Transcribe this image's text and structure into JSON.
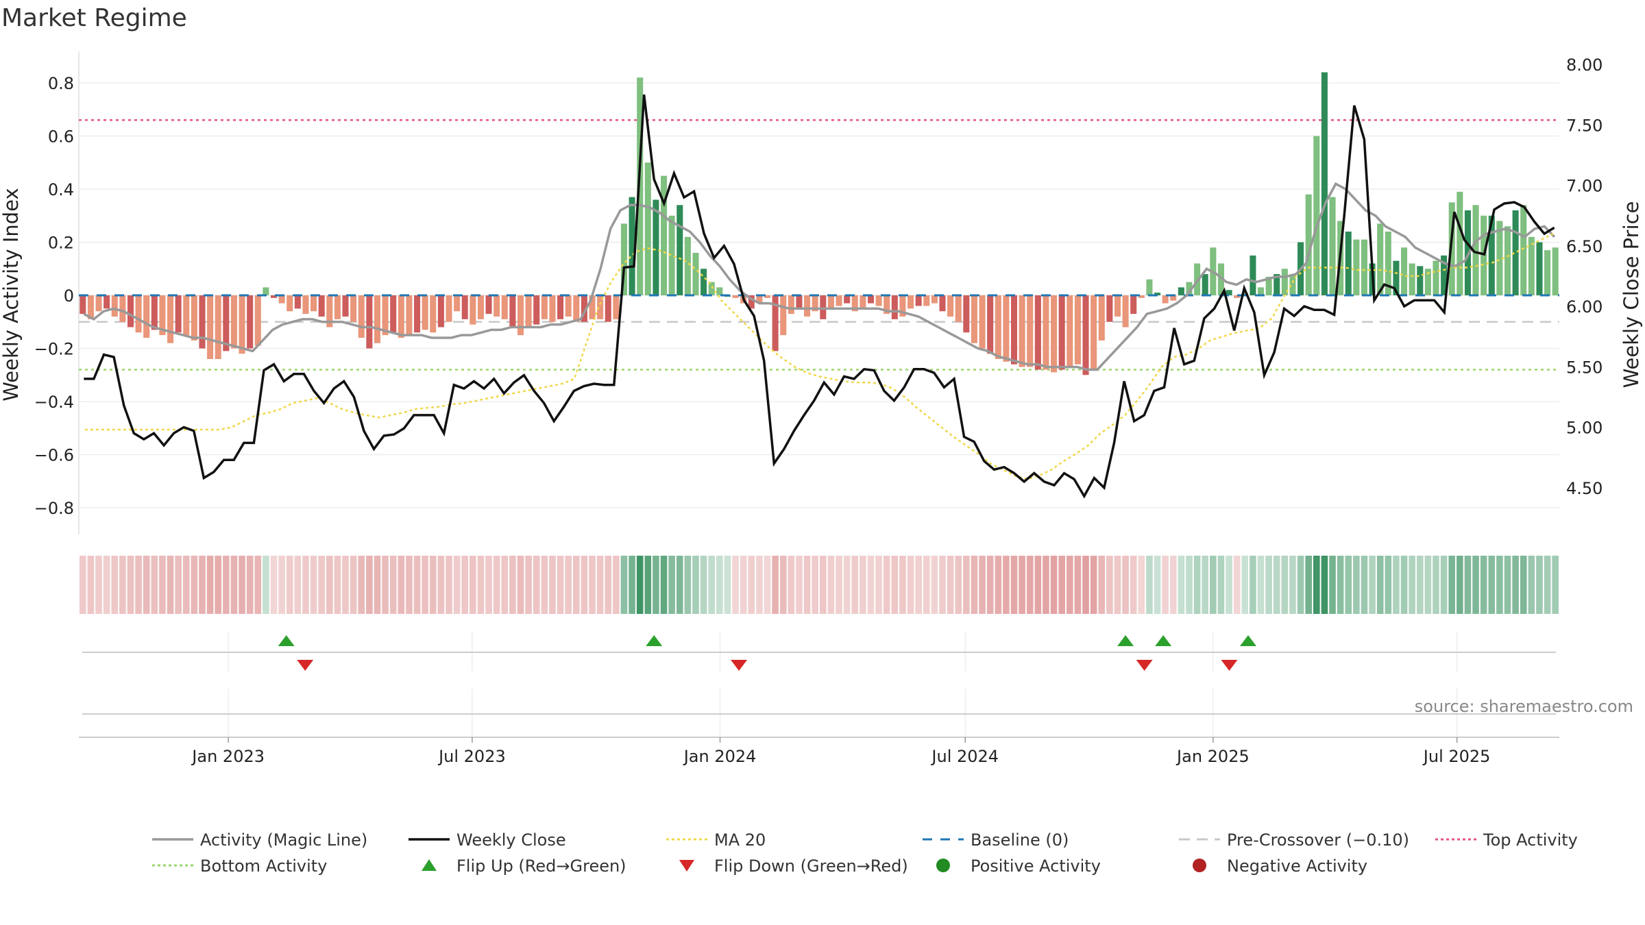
{
  "page": {
    "title": "Market Regime",
    "source": "source: sharemaestro.com"
  },
  "colors": {
    "dark_green": "#2e8b57",
    "light_green": "#7fbf7f",
    "dark_red": "#cd5c5c",
    "light_red": "#e9967a",
    "magic_line": "#999999",
    "weekly_close": "#111111",
    "ma20": "#f0d84a",
    "baseline": "#1f77b4",
    "pre_crossover": "#c8c8c8",
    "top_activity": "#e75480",
    "bottom_activity": "#9ad66a",
    "flip_up": "#2ca02c",
    "flip_down": "#d62728",
    "positive": "#228b22",
    "negative": "#b22222"
  },
  "chart_data": {
    "type": "bar",
    "title": "Market Regime",
    "x_axis": {
      "start": "2022-09-12",
      "end": "2025-09-15",
      "ticks": [
        "Jan 2023",
        "Jul 2023",
        "Jan 2024",
        "Jul 2024",
        "Jan 2025",
        "Jul 2025"
      ]
    },
    "y_left": {
      "label": "Weekly Activity Index",
      "range": [
        -0.9,
        0.92
      ],
      "ticks": [
        "0.8",
        "0.6",
        "0.4",
        "0.2",
        "0",
        "−0.2",
        "−0.4",
        "−0.6",
        "−0.8"
      ]
    },
    "y_right": {
      "label": "Weekly Close Price",
      "range": [
        4.0,
        8.0
      ],
      "ticks": [
        "8.00",
        "7.50",
        "7.00",
        "6.50",
        "6.00",
        "5.50",
        "5.00",
        "4.50"
      ]
    },
    "thresholds": {
      "top_activity": 0.66,
      "bottom_activity": -0.28,
      "pre_crossover": -0.1,
      "baseline": 0
    },
    "activity_index": [
      -0.07,
      -0.09,
      -0.06,
      -0.05,
      -0.08,
      -0.1,
      -0.12,
      -0.14,
      -0.16,
      -0.13,
      -0.15,
      -0.18,
      -0.14,
      -0.15,
      -0.17,
      -0.2,
      -0.24,
      -0.24,
      -0.21,
      -0.2,
      -0.22,
      -0.2,
      -0.19,
      0.03,
      -0.01,
      -0.03,
      -0.06,
      -0.05,
      -0.07,
      -0.06,
      -0.08,
      -0.12,
      -0.09,
      -0.08,
      -0.1,
      -0.16,
      -0.2,
      -0.18,
      -0.15,
      -0.14,
      -0.16,
      -0.15,
      -0.14,
      -0.13,
      -0.14,
      -0.12,
      -0.1,
      -0.06,
      -0.09,
      -0.11,
      -0.09,
      -0.07,
      -0.08,
      -0.09,
      -0.12,
      -0.15,
      -0.12,
      -0.11,
      -0.09,
      -0.1,
      -0.09,
      -0.08,
      -0.1,
      -0.1,
      -0.09,
      -0.09,
      -0.1,
      -0.09,
      0.27,
      0.37,
      0.82,
      0.5,
      0.36,
      0.45,
      0.3,
      0.34,
      0.22,
      0.16,
      0.1,
      0.05,
      0.03,
      0,
      -0.01,
      -0.03,
      -0.05,
      -0.03,
      -0.01,
      -0.21,
      -0.15,
      -0.07,
      -0.05,
      -0.08,
      -0.06,
      -0.09,
      -0.05,
      -0.04,
      -0.03,
      -0.06,
      -0.05,
      -0.03,
      -0.04,
      -0.07,
      -0.09,
      -0.08,
      -0.05,
      -0.04,
      -0.04,
      -0.03,
      -0.06,
      -0.08,
      -0.1,
      -0.14,
      -0.18,
      -0.2,
      -0.22,
      -0.24,
      -0.25,
      -0.26,
      -0.27,
      -0.27,
      -0.28,
      -0.28,
      -0.29,
      -0.28,
      -0.27,
      -0.26,
      -0.3,
      -0.28,
      -0.17,
      -0.1,
      -0.08,
      -0.12,
      -0.07,
      -0.01,
      0.06,
      0.01,
      -0.03,
      -0.02,
      0.03,
      0.05,
      0.12,
      0.08,
      0.18,
      0.12,
      0.02,
      -0.01,
      0.01,
      0.15,
      0.03,
      0.07,
      0.08,
      0.1,
      0.08,
      0.2,
      0.38,
      0.6,
      0.84,
      0.37,
      0.28,
      0.24,
      0.21,
      0.21,
      0.12,
      0.27,
      0.24,
      0.13,
      0.18,
      0.12,
      0.11,
      0.1,
      0.13,
      0.15,
      0.35,
      0.39,
      0.32,
      0.34,
      0.3,
      0.3,
      0.28,
      0.26,
      0.32,
      0.34,
      0.22,
      0.2,
      0.17,
      0.18
    ],
    "weekly_close": [
      5.4,
      5.4,
      5.6,
      5.58,
      5.18,
      4.95,
      4.9,
      4.95,
      4.85,
      4.95,
      5.0,
      4.97,
      4.58,
      4.63,
      4.73,
      4.73,
      4.87,
      4.87,
      5.47,
      5.52,
      5.38,
      5.44,
      5.44,
      5.3,
      5.2,
      5.32,
      5.38,
      5.25,
      4.97,
      4.82,
      4.93,
      4.94,
      4.99,
      5.1,
      5.1,
      5.1,
      4.95,
      5.35,
      5.32,
      5.38,
      5.32,
      5.4,
      5.28,
      5.37,
      5.43,
      5.3,
      5.2,
      5.05,
      5.17,
      5.3,
      5.34,
      5.36,
      5.35,
      5.35,
      6.32,
      6.33,
      7.75,
      7.05,
      6.85,
      7.1,
      6.9,
      6.95,
      6.6,
      6.4,
      6.5,
      6.35,
      6.05,
      5.92,
      5.55,
      4.7,
      4.82,
      4.97,
      5.1,
      5.22,
      5.37,
      5.27,
      5.42,
      5.4,
      5.48,
      5.47,
      5.3,
      5.22,
      5.33,
      5.48,
      5.48,
      5.45,
      5.33,
      5.4,
      4.92,
      4.88,
      4.72,
      4.65,
      4.67,
      4.62,
      4.55,
      4.62,
      4.55,
      4.52,
      4.62,
      4.57,
      4.43,
      4.58,
      4.5,
      4.87,
      5.38,
      5.05,
      5.1,
      5.3,
      5.33,
      5.82,
      5.52,
      5.55,
      5.9,
      5.98,
      6.13,
      5.8,
      6.15,
      5.95,
      5.43,
      5.62,
      5.98,
      5.92,
      6.0,
      5.97,
      5.97,
      5.93,
      6.75,
      7.66,
      7.38,
      6.05,
      6.18,
      6.15,
      6.0,
      6.05,
      6.05,
      6.05,
      5.95,
      6.78,
      6.55,
      6.45,
      6.43,
      6.8,
      6.85,
      6.86,
      6.82,
      6.7,
      6.6,
      6.65
    ],
    "magic_line": [
      -0.07,
      -0.09,
      -0.06,
      -0.05,
      -0.06,
      -0.08,
      -0.1,
      -0.12,
      -0.13,
      -0.14,
      -0.15,
      -0.16,
      -0.16,
      -0.17,
      -0.18,
      -0.19,
      -0.2,
      -0.21,
      -0.17,
      -0.13,
      -0.11,
      -0.1,
      -0.09,
      -0.09,
      -0.1,
      -0.1,
      -0.1,
      -0.11,
      -0.12,
      -0.12,
      -0.13,
      -0.14,
      -0.15,
      -0.15,
      -0.15,
      -0.16,
      -0.16,
      -0.16,
      -0.15,
      -0.15,
      -0.14,
      -0.13,
      -0.13,
      -0.12,
      -0.12,
      -0.12,
      -0.12,
      -0.11,
      -0.11,
      -0.1,
      -0.09,
      -0.02,
      0.1,
      0.25,
      0.32,
      0.34,
      0.34,
      0.33,
      0.31,
      0.28,
      0.26,
      0.24,
      0.2,
      0.15,
      0.11,
      0.06,
      0.02,
      -0.01,
      -0.03,
      -0.03,
      -0.04,
      -0.05,
      -0.05,
      -0.05,
      -0.05,
      -0.05,
      -0.05,
      -0.05,
      -0.05,
      -0.05,
      -0.05,
      -0.06,
      -0.06,
      -0.07,
      -0.08,
      -0.1,
      -0.12,
      -0.14,
      -0.16,
      -0.18,
      -0.2,
      -0.21,
      -0.23,
      -0.24,
      -0.25,
      -0.26,
      -0.26,
      -0.27,
      -0.27,
      -0.27,
      -0.27,
      -0.28,
      -0.28,
      -0.24,
      -0.2,
      -0.16,
      -0.12,
      -0.07,
      -0.06,
      -0.05,
      -0.03,
      0.0,
      0.05,
      0.1,
      0.08,
      0.05,
      0.04,
      0.06,
      0.05,
      0.06,
      0.07,
      0.07,
      0.08,
      0.12,
      0.25,
      0.35,
      0.42,
      0.4,
      0.36,
      0.32,
      0.3,
      0.26,
      0.24,
      0.22,
      0.18,
      0.16,
      0.14,
      0.12,
      0.11,
      0.13,
      0.2,
      0.23,
      0.24,
      0.25,
      0.24,
      0.22,
      0.25,
      0.26,
      0.22
    ],
    "ma20": [
      4.98,
      4.98,
      4.98,
      4.98,
      4.98,
      4.98,
      4.98,
      4.98,
      4.98,
      4.98,
      4.98,
      4.98,
      5.0,
      5.05,
      5.1,
      5.12,
      5.15,
      5.2,
      5.22,
      5.24,
      5.2,
      5.15,
      5.12,
      5.1,
      5.08,
      5.1,
      5.12,
      5.15,
      5.16,
      5.17,
      5.19,
      5.2,
      5.22,
      5.24,
      5.26,
      5.28,
      5.3,
      5.32,
      5.34,
      5.36,
      5.4,
      5.7,
      6.0,
      6.2,
      6.35,
      6.45,
      6.48,
      6.46,
      6.42,
      6.38,
      6.3,
      6.2,
      6.05,
      5.95,
      5.85,
      5.75,
      5.65,
      5.57,
      5.5,
      5.45,
      5.42,
      5.4,
      5.38,
      5.37,
      5.37,
      5.36,
      5.32,
      5.25,
      5.16,
      5.08,
      5.0,
      4.92,
      4.85,
      4.78,
      4.7,
      4.65,
      4.6,
      4.57,
      4.6,
      4.65,
      4.72,
      4.78,
      4.85,
      4.95,
      5.02,
      5.1,
      5.22,
      5.35,
      5.5,
      5.58,
      5.6,
      5.65,
      5.72,
      5.75,
      5.78,
      5.8,
      5.82,
      5.9,
      6.08,
      6.25,
      6.32,
      6.32,
      6.32,
      6.32,
      6.3,
      6.3,
      6.3,
      6.28,
      6.25,
      6.25,
      6.28,
      6.3,
      6.32,
      6.32,
      6.34,
      6.36,
      6.4,
      6.45,
      6.5,
      6.55,
      6.6
    ],
    "flip_up_dates": [
      "2023-02-13",
      "2023-11-13",
      "2024-10-28",
      "2024-11-25",
      "2025-01-27"
    ],
    "flip_down_dates": [
      "2023-02-27",
      "2024-01-15",
      "2024-11-11",
      "2025-01-13"
    ],
    "legend": [
      {
        "label": "Activity (Magic Line)",
        "style": "solid",
        "color": "#999999"
      },
      {
        "label": "Weekly Close",
        "style": "solid",
        "color": "#111111"
      },
      {
        "label": "MA 20",
        "style": "dotted",
        "color": "#f0d84a"
      },
      {
        "label": "Baseline (0)",
        "style": "dashed",
        "color": "#1f77b4"
      },
      {
        "label": "Pre-Crossover (−0.10)",
        "style": "dashed-light",
        "color": "#c8c8c8"
      },
      {
        "label": "Top Activity",
        "style": "dotted",
        "color": "#e75480"
      },
      {
        "label": "Bottom Activity",
        "style": "dotted",
        "color": "#9ad66a"
      },
      {
        "label": "Flip Up (Red→Green)",
        "style": "triangle-up",
        "color": "#2ca02c"
      },
      {
        "label": "Flip Down (Green→Red)",
        "style": "triangle-down",
        "color": "#d62728"
      },
      {
        "label": "Positive Activity",
        "style": "circle",
        "color": "#228b22"
      },
      {
        "label": "Negative Activity",
        "style": "circle",
        "color": "#b22222"
      }
    ]
  }
}
